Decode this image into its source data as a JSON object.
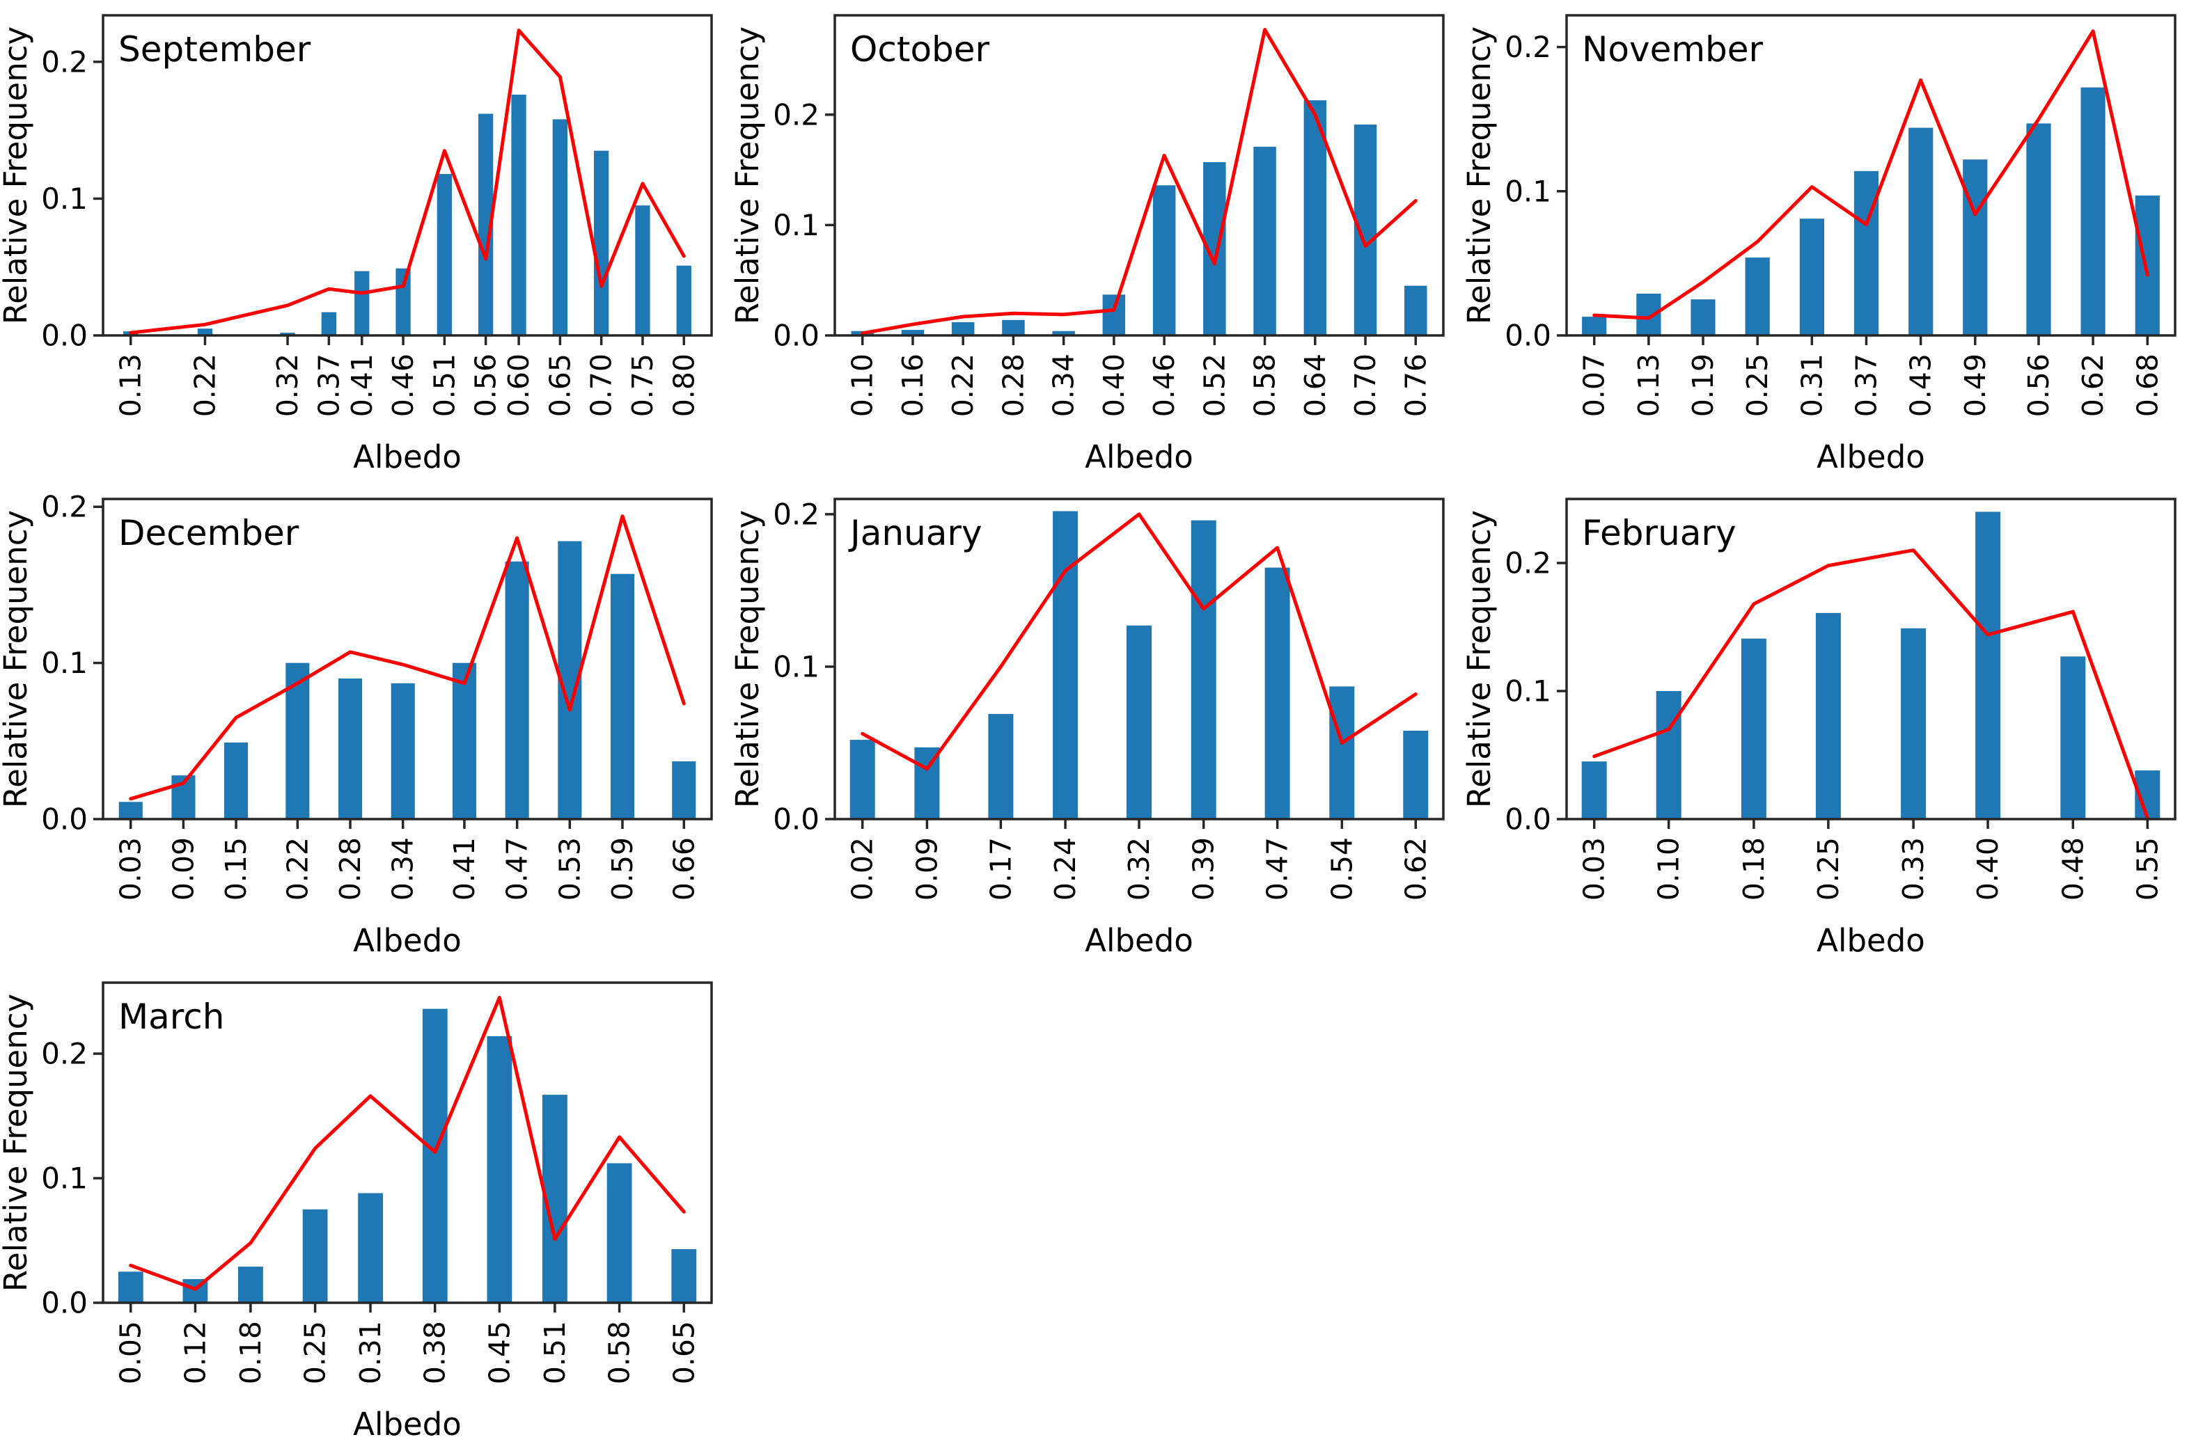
{
  "figure": {
    "xlabel": "Albedo",
    "ylabel": "Relative Frequency",
    "colors": {
      "bar": "#1f77b4",
      "line": "#ff0000",
      "axis": "#262626",
      "text": "#000000",
      "background": "#ffffff"
    }
  },
  "chart_data": [
    {
      "type": "bar",
      "subtype": "histogram-with-line-overlay",
      "title": "September",
      "xlabel": "Albedo",
      "ylabel": "Relative Frequency",
      "categories": [
        "0.13",
        "0.22",
        "0.32",
        "0.37",
        "0.41",
        "0.46",
        "0.51",
        "0.56",
        "0.60",
        "0.65",
        "0.70",
        "0.75",
        "0.80"
      ],
      "series": [
        {
          "name": "relative-frequency-bars",
          "type": "bar",
          "values": [
            0.003,
            0.005,
            0.002,
            0.017,
            0.047,
            0.049,
            0.118,
            0.162,
            0.176,
            0.158,
            0.135,
            0.095,
            0.051
          ]
        },
        {
          "name": "overlay-line",
          "type": "line",
          "values": [
            0.002,
            0.008,
            0.022,
            0.034,
            0.031,
            0.036,
            0.135,
            0.056,
            0.223,
            0.189,
            0.036,
            0.111,
            0.058
          ]
        }
      ],
      "ylim": [
        0,
        0.234
      ],
      "yticks": [
        0.0,
        0.1,
        0.2
      ],
      "ytick_labels": [
        "0.0",
        "0.1",
        "0.2"
      ],
      "grid": false,
      "legend": "none",
      "layout": {
        "row": 0,
        "col": 0
      }
    },
    {
      "type": "bar",
      "subtype": "histogram-with-line-overlay",
      "title": "October",
      "xlabel": "Albedo",
      "ylabel": "Relative Frequency",
      "categories": [
        "0.10",
        "0.16",
        "0.22",
        "0.28",
        "0.34",
        "0.40",
        "0.46",
        "0.52",
        "0.58",
        "0.64",
        "0.70",
        "0.76"
      ],
      "series": [
        {
          "name": "relative-frequency-bars",
          "type": "bar",
          "values": [
            0.004,
            0.005,
            0.012,
            0.014,
            0.004,
            0.037,
            0.136,
            0.157,
            0.171,
            0.213,
            0.191,
            0.045
          ]
        },
        {
          "name": "overlay-line",
          "type": "line",
          "values": [
            0.002,
            0.01,
            0.017,
            0.02,
            0.019,
            0.023,
            0.163,
            0.065,
            0.277,
            0.2,
            0.081,
            0.122
          ]
        }
      ],
      "ylim": [
        0,
        0.29
      ],
      "yticks": [
        0.0,
        0.1,
        0.2
      ],
      "ytick_labels": [
        "0.0",
        "0.1",
        "0.2"
      ],
      "grid": false,
      "legend": "none",
      "layout": {
        "row": 0,
        "col": 1
      }
    },
    {
      "type": "bar",
      "subtype": "histogram-with-line-overlay",
      "title": "November",
      "xlabel": "Albedo",
      "ylabel": "Relative Frequency",
      "categories": [
        "0.07",
        "0.13",
        "0.19",
        "0.25",
        "0.31",
        "0.37",
        "0.43",
        "0.49",
        "0.56",
        "0.62",
        "0.68"
      ],
      "series": [
        {
          "name": "relative-frequency-bars",
          "type": "bar",
          "values": [
            0.013,
            0.029,
            0.025,
            0.054,
            0.081,
            0.114,
            0.144,
            0.122,
            0.147,
            0.172,
            0.097
          ]
        },
        {
          "name": "overlay-line",
          "type": "line",
          "values": [
            0.014,
            0.012,
            0.037,
            0.065,
            0.103,
            0.077,
            0.177,
            0.084,
            0.15,
            0.211,
            0.042
          ]
        }
      ],
      "ylim": [
        0,
        0.222
      ],
      "yticks": [
        0.0,
        0.1,
        0.2
      ],
      "ytick_labels": [
        "0.0",
        "0.1",
        "0.2"
      ],
      "grid": false,
      "legend": "none",
      "layout": {
        "row": 0,
        "col": 2
      }
    },
    {
      "type": "bar",
      "subtype": "histogram-with-line-overlay",
      "title": "December",
      "xlabel": "Albedo",
      "ylabel": "Relative Frequency",
      "categories": [
        "0.03",
        "0.09",
        "0.15",
        "0.22",
        "0.28",
        "0.34",
        "0.41",
        "0.47",
        "0.53",
        "0.59",
        "0.66"
      ],
      "series": [
        {
          "name": "relative-frequency-bars",
          "type": "bar",
          "values": [
            0.011,
            0.028,
            0.049,
            0.1,
            0.09,
            0.087,
            0.1,
            0.165,
            0.178,
            0.157,
            0.037
          ]
        },
        {
          "name": "overlay-line",
          "type": "line",
          "values": [
            0.013,
            0.023,
            0.065,
            0.087,
            0.107,
            0.099,
            0.087,
            0.18,
            0.07,
            0.194,
            0.074
          ]
        }
      ],
      "ylim": [
        0,
        0.205
      ],
      "yticks": [
        0.0,
        0.1,
        0.2
      ],
      "ytick_labels": [
        "0.0",
        "0.1",
        "0.2"
      ],
      "grid": false,
      "legend": "none",
      "layout": {
        "row": 1,
        "col": 0
      }
    },
    {
      "type": "bar",
      "subtype": "histogram-with-line-overlay",
      "title": "January",
      "xlabel": "Albedo",
      "ylabel": "Relative Frequency",
      "categories": [
        "0.02",
        "0.09",
        "0.17",
        "0.24",
        "0.32",
        "0.39",
        "0.47",
        "0.54",
        "0.62"
      ],
      "series": [
        {
          "name": "relative-frequency-bars",
          "type": "bar",
          "values": [
            0.052,
            0.047,
            0.069,
            0.202,
            0.127,
            0.196,
            0.165,
            0.087,
            0.058
          ]
        },
        {
          "name": "overlay-line",
          "type": "line",
          "values": [
            0.056,
            0.033,
            0.1,
            0.163,
            0.2,
            0.138,
            0.178,
            0.05,
            0.082
          ]
        }
      ],
      "ylim": [
        0,
        0.21
      ],
      "yticks": [
        0.0,
        0.1,
        0.2
      ],
      "ytick_labels": [
        "0.0",
        "0.1",
        "0.2"
      ],
      "grid": false,
      "legend": "none",
      "layout": {
        "row": 1,
        "col": 1
      }
    },
    {
      "type": "bar",
      "subtype": "histogram-with-line-overlay",
      "title": "February",
      "xlabel": "Albedo",
      "ylabel": "Relative Frequency",
      "categories": [
        "0.03",
        "0.10",
        "0.18",
        "0.25",
        "0.33",
        "0.40",
        "0.48",
        "0.55"
      ],
      "series": [
        {
          "name": "relative-frequency-bars",
          "type": "bar",
          "values": [
            0.045,
            0.1,
            0.141,
            0.161,
            0.149,
            0.24,
            0.127,
            0.038
          ]
        },
        {
          "name": "overlay-line",
          "type": "line",
          "values": [
            0.049,
            0.07,
            0.168,
            0.198,
            0.21,
            0.144,
            0.162,
            0.001
          ]
        }
      ],
      "ylim": [
        0,
        0.25
      ],
      "yticks": [
        0.0,
        0.1,
        0.2
      ],
      "ytick_labels": [
        "0.0",
        "0.1",
        "0.2"
      ],
      "grid": false,
      "legend": "none",
      "layout": {
        "row": 1,
        "col": 2
      }
    },
    {
      "type": "bar",
      "subtype": "histogram-with-line-overlay",
      "title": "March",
      "xlabel": "Albedo",
      "ylabel": "Relative Frequency",
      "categories": [
        "0.05",
        "0.12",
        "0.18",
        "0.25",
        "0.31",
        "0.38",
        "0.45",
        "0.51",
        "0.58",
        "0.65"
      ],
      "series": [
        {
          "name": "relative-frequency-bars",
          "type": "bar",
          "values": [
            0.025,
            0.019,
            0.029,
            0.075,
            0.088,
            0.236,
            0.214,
            0.167,
            0.112,
            0.043
          ]
        },
        {
          "name": "overlay-line",
          "type": "line",
          "values": [
            0.03,
            0.011,
            0.048,
            0.124,
            0.166,
            0.121,
            0.245,
            0.051,
            0.133,
            0.073
          ]
        }
      ],
      "ylim": [
        0,
        0.257
      ],
      "yticks": [
        0.0,
        0.1,
        0.2
      ],
      "ytick_labels": [
        "0.0",
        "0.1",
        "0.2"
      ],
      "grid": false,
      "legend": "none",
      "layout": {
        "row": 2,
        "col": 0
      }
    }
  ]
}
